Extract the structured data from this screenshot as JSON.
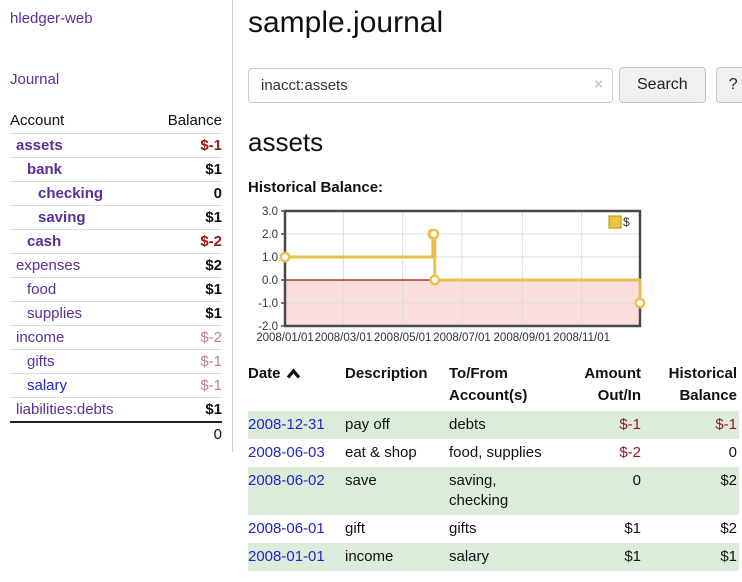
{
  "app": {
    "title": "hledger-web",
    "nav_journal": "Journal"
  },
  "sidebar": {
    "columns": [
      "Account",
      "Balance"
    ],
    "accounts": [
      {
        "name": "assets",
        "indent": 1,
        "bold": true,
        "blue": false,
        "balance": "$-1",
        "balance_class": "neg"
      },
      {
        "name": "bank",
        "indent": 2,
        "bold": true,
        "blue": false,
        "balance": "$1",
        "balance_class": ""
      },
      {
        "name": "checking",
        "indent": 3,
        "bold": true,
        "blue": false,
        "balance": "0",
        "balance_class": ""
      },
      {
        "name": "saving",
        "indent": 3,
        "bold": true,
        "blue": false,
        "balance": "$1",
        "balance_class": ""
      },
      {
        "name": "cash",
        "indent": 2,
        "bold": true,
        "blue": false,
        "balance": "$-2",
        "balance_class": "neg"
      },
      {
        "name": "expenses",
        "indent": 1,
        "bold": false,
        "blue": false,
        "balance": "$2",
        "balance_class": ""
      },
      {
        "name": "food",
        "indent": 2,
        "bold": false,
        "blue": false,
        "balance": "$1",
        "balance_class": ""
      },
      {
        "name": "supplies",
        "indent": 2,
        "bold": false,
        "blue": false,
        "balance": "$1",
        "balance_class": ""
      },
      {
        "name": "income",
        "indent": 1,
        "bold": false,
        "blue": false,
        "balance": "$-2",
        "balance_class": "muted-neg"
      },
      {
        "name": "gifts",
        "indent": 2,
        "bold": false,
        "blue": false,
        "balance": "$-1",
        "balance_class": "muted-neg"
      },
      {
        "name": "salary",
        "indent": 2,
        "bold": false,
        "blue": true,
        "balance": "$-1",
        "balance_class": "muted-neg"
      },
      {
        "name": "liabilities:debts",
        "indent": 1,
        "bold": false,
        "blue": false,
        "balance": "$1",
        "balance_class": ""
      }
    ],
    "total": "0"
  },
  "header": {
    "title": "sample.journal"
  },
  "search": {
    "query": "inacct:assets",
    "clear_icon": "×",
    "button_label": "Search",
    "help_label": "?"
  },
  "account_page": {
    "title": "assets",
    "chart_label": "Historical Balance:"
  },
  "chart_data": {
    "type": "line",
    "step": true,
    "title": "Historical Balance",
    "legend_label": "$",
    "legend_position": "top-right",
    "grid": true,
    "series": [
      {
        "name": "$",
        "points": [
          [
            "2008-01-01",
            1
          ],
          [
            "2008-06-01",
            2
          ],
          [
            "2008-06-02",
            2
          ],
          [
            "2008-06-03",
            0
          ],
          [
            "2008-12-31",
            -1
          ]
        ]
      }
    ],
    "x_domain": [
      "2008-01-01",
      "2008-12-31"
    ],
    "x_tick_labels": [
      "2008/01/01",
      "2008/03/01",
      "2008/05/01",
      "2008/07/01",
      "2008/09/01",
      "2008/11/01"
    ],
    "y_ticks": [
      "3.0",
      "2.0",
      "1.0",
      "0.0",
      "-1.0",
      "-2.0"
    ],
    "ylim": [
      -2,
      3
    ],
    "colors": {
      "line": "#e8c04a",
      "marker_fill": "#ffffff",
      "negative_region": "#fadddd",
      "zero_line": "#9d1313",
      "grid": "#dddddd",
      "border": "#4a4a4a",
      "legend_fill": "#eac33f",
      "legend_border": "#c79a1e",
      "axis_text": "#333333"
    }
  },
  "transactions": {
    "columns": [
      {
        "line1": "Date",
        "line2": "",
        "align": "left",
        "sortable": true
      },
      {
        "line1": "Description",
        "line2": "",
        "align": "left",
        "sortable": false
      },
      {
        "line1": "To/From",
        "line2": "Account(s)",
        "align": "left",
        "sortable": false
      },
      {
        "line1": "Amount",
        "line2": "Out/In",
        "align": "right",
        "sortable": false
      },
      {
        "line1": "Historical",
        "line2": "Balance",
        "align": "right",
        "sortable": false
      }
    ],
    "rows": [
      {
        "date": "2008-12-31",
        "description": "pay off",
        "accounts": "debts",
        "amount": "$-1",
        "amount_negative": true,
        "balance": "$-1",
        "balance_negative": true,
        "shaded": true
      },
      {
        "date": "2008-06-03",
        "description": "eat & shop",
        "accounts": "food, supplies",
        "amount": "$-2",
        "amount_negative": true,
        "balance": "0",
        "balance_negative": false,
        "shaded": false
      },
      {
        "date": "2008-06-02",
        "description": "save",
        "accounts": "saving, checking",
        "amount": "0",
        "amount_negative": false,
        "balance": "$2",
        "balance_negative": false,
        "shaded": true
      },
      {
        "date": "2008-06-01",
        "description": "gift",
        "accounts": "gifts",
        "amount": "$1",
        "amount_negative": false,
        "balance": "$2",
        "balance_negative": false,
        "shaded": false
      },
      {
        "date": "2008-01-01",
        "description": "income",
        "accounts": "salary",
        "amount": "$1",
        "amount_negative": false,
        "balance": "$1",
        "balance_negative": false,
        "shaded": true
      }
    ]
  }
}
